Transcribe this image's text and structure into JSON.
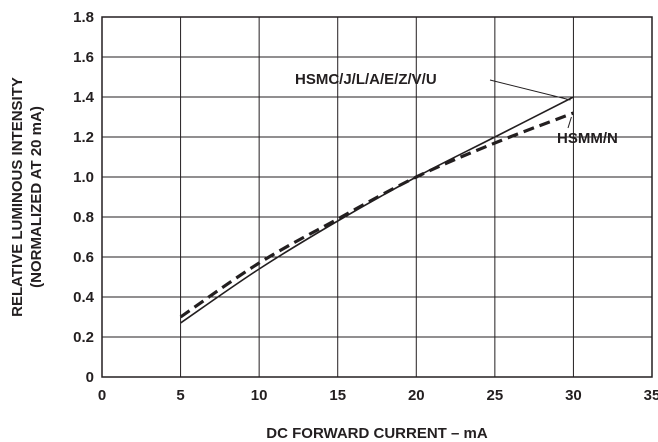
{
  "chart_data": {
    "type": "line",
    "title": "",
    "xlabel": "DC FORWARD CURRENT – mA",
    "ylabel_lines": [
      "RELATIVE LUMINOUS INTENSITY",
      "(NORMALIZED AT 20 mA)"
    ],
    "xlim": [
      0,
      35
    ],
    "ylim": [
      0,
      1.8
    ],
    "xticks": [
      "0",
      "5",
      "10",
      "15",
      "20",
      "25",
      "30",
      "35"
    ],
    "yticks": [
      "0",
      "0.2",
      "0.4",
      "0.6",
      "0.8",
      "1.0",
      "1.2",
      "1.4",
      "1.6",
      "1.8"
    ],
    "grid": true,
    "legend": "none",
    "series": [
      {
        "name": "HSMC/J/L/A/E/Z/V/U",
        "style": "solid",
        "x": [
          5,
          10,
          15,
          20,
          25,
          30
        ],
        "y": [
          0.27,
          0.54,
          0.78,
          1.0,
          1.2,
          1.4
        ]
      },
      {
        "name": "HSMM/N",
        "style": "dashed",
        "x": [
          5,
          10,
          15,
          20,
          25,
          30
        ],
        "y": [
          0.3,
          0.57,
          0.79,
          1.0,
          1.17,
          1.32
        ]
      }
    ]
  }
}
